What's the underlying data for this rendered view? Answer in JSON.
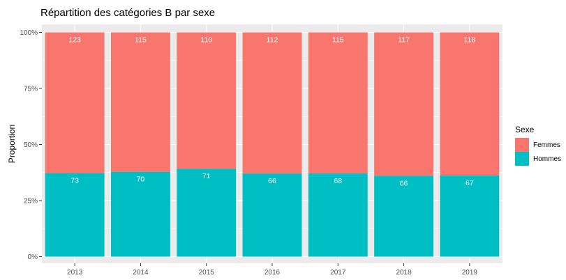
{
  "chart_data": {
    "type": "bar",
    "stacked": true,
    "normalized": true,
    "title": "Répartition des catégories B par sexe",
    "xlabel": "",
    "ylabel": "Proportion",
    "categories": [
      "2013",
      "2014",
      "2015",
      "2016",
      "2017",
      "2018",
      "2019"
    ],
    "y_tick_labels": [
      "0%",
      "25%",
      "50%",
      "75%",
      "100%"
    ],
    "ylim": [
      0,
      1
    ],
    "grid": true,
    "legend": {
      "title": "Sexe",
      "position": "right"
    },
    "series": [
      {
        "name": "Femmes",
        "color": "#F8766D",
        "values": [
          123,
          115,
          110,
          112,
          115,
          117,
          118
        ]
      },
      {
        "name": "Hommes",
        "color": "#00BFC4",
        "values": [
          73,
          70,
          71,
          66,
          68,
          66,
          67
        ]
      }
    ],
    "panel_background": "#EBEBEB",
    "grid_color": "#FFFFFF"
  }
}
